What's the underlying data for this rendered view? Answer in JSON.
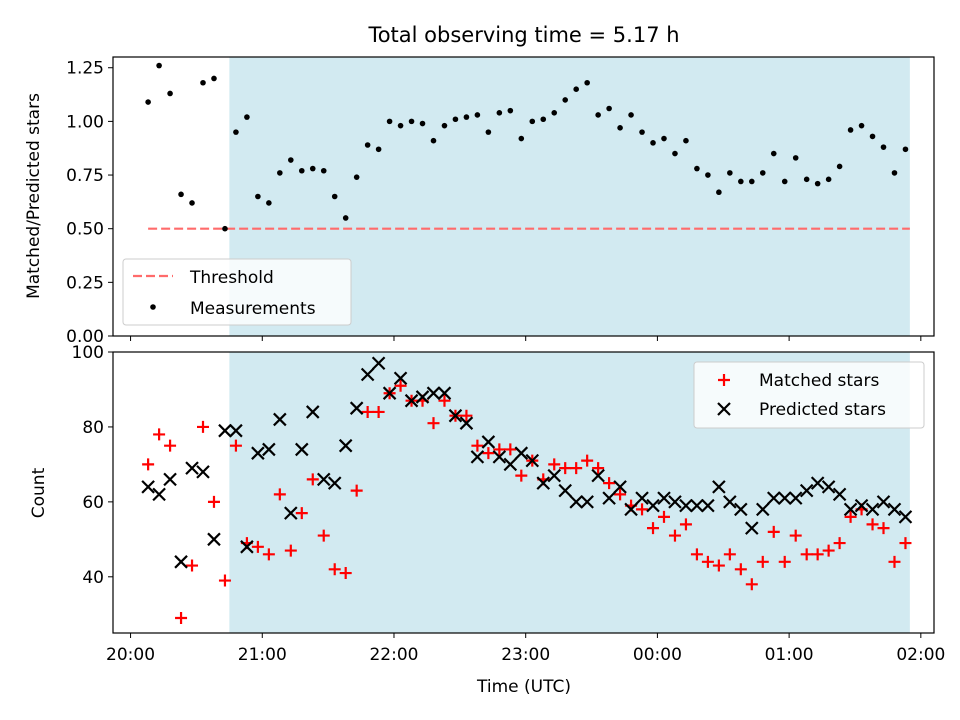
{
  "chart_data": [
    {
      "type": "scatter",
      "title": "Total observing time = 5.17 h",
      "ylabel": "Matched/Predicted stars",
      "xlabel": "",
      "ylim": [
        0,
        1.3
      ],
      "yticks": [
        "0.00",
        "0.25",
        "0.50",
        "0.75",
        "1.00",
        "1.25"
      ],
      "ytick_values": [
        0,
        0.25,
        0.5,
        0.75,
        1.0,
        1.25
      ],
      "legend_placement": "lower-left",
      "shaded_span": [
        "20:45",
        "01:55"
      ],
      "colors": {
        "shade": "#add8e6",
        "threshold": "#ff6b6b",
        "measurements": "#000000"
      },
      "threshold": {
        "name": "Threshold",
        "value": 0.5,
        "x_range": [
          "20:08",
          "01:55"
        ]
      },
      "series": [
        {
          "name": "Measurements",
          "x": [
            "20:08",
            "20:13",
            "20:18",
            "20:23",
            "20:28",
            "20:33",
            "20:38",
            "20:43",
            "20:48",
            "20:53",
            "20:58",
            "21:03",
            "21:08",
            "21:13",
            "21:18",
            "21:23",
            "21:28",
            "21:33",
            "21:38",
            "21:43",
            "21:48",
            "21:53",
            "21:58",
            "22:03",
            "22:08",
            "22:13",
            "22:18",
            "22:23",
            "22:28",
            "22:33",
            "22:38",
            "22:43",
            "22:48",
            "22:53",
            "22:58",
            "23:03",
            "23:08",
            "23:13",
            "23:18",
            "23:23",
            "23:28",
            "23:33",
            "23:38",
            "23:43",
            "23:48",
            "23:53",
            "23:58",
            "00:03",
            "00:08",
            "00:13",
            "00:18",
            "00:23",
            "00:28",
            "00:33",
            "00:38",
            "00:43",
            "00:48",
            "00:53",
            "00:58",
            "01:03",
            "01:08",
            "01:13",
            "01:18",
            "01:23",
            "01:28",
            "01:33",
            "01:38",
            "01:43",
            "01:48",
            "01:53"
          ],
          "y": [
            1.09,
            1.26,
            1.13,
            0.66,
            0.62,
            1.18,
            1.2,
            0.5,
            0.95,
            1.02,
            0.65,
            0.62,
            0.76,
            0.82,
            0.77,
            0.78,
            0.77,
            0.65,
            0.55,
            0.74,
            0.89,
            0.87,
            1.0,
            0.98,
            1.0,
            0.99,
            0.91,
            0.98,
            1.01,
            1.02,
            1.03,
            0.95,
            1.04,
            1.05,
            0.92,
            1.0,
            1.01,
            1.04,
            1.1,
            1.15,
            1.18,
            1.03,
            1.06,
            0.97,
            1.03,
            0.95,
            0.9,
            0.92,
            0.85,
            0.91,
            0.78,
            0.75,
            0.67,
            0.76,
            0.72,
            0.72,
            0.76,
            0.85,
            0.72,
            0.83,
            0.73,
            0.71,
            0.73,
            0.79,
            0.96,
            0.98,
            0.93,
            0.88,
            0.76,
            0.87
          ]
        }
      ]
    },
    {
      "type": "scatter",
      "title": "",
      "ylabel": "Count",
      "xlabel": "Time (UTC)",
      "ylim": [
        25,
        100
      ],
      "yticks": [
        "40",
        "60",
        "80",
        "100"
      ],
      "ytick_values": [
        40,
        60,
        80,
        100
      ],
      "xlim": [
        "19:52",
        "02:06"
      ],
      "xticks": [
        "20:00",
        "21:00",
        "22:00",
        "23:00",
        "00:00",
        "01:00",
        "02:00"
      ],
      "legend_placement": "upper-right",
      "shaded_span": [
        "20:45",
        "01:55"
      ],
      "colors": {
        "shade": "#add8e6",
        "matched": "#ff0000",
        "predicted": "#000000"
      },
      "series": [
        {
          "name": "Matched stars",
          "marker": "plus",
          "x": [
            "20:08",
            "20:13",
            "20:18",
            "20:23",
            "20:28",
            "20:33",
            "20:38",
            "20:43",
            "20:48",
            "20:53",
            "20:58",
            "21:03",
            "21:08",
            "21:13",
            "21:18",
            "21:23",
            "21:28",
            "21:33",
            "21:38",
            "21:43",
            "21:48",
            "21:53",
            "21:58",
            "22:03",
            "22:08",
            "22:13",
            "22:18",
            "22:23",
            "22:28",
            "22:33",
            "22:38",
            "22:43",
            "22:48",
            "22:53",
            "22:58",
            "23:03",
            "23:08",
            "23:13",
            "23:18",
            "23:23",
            "23:28",
            "23:33",
            "23:38",
            "23:43",
            "23:48",
            "23:53",
            "23:58",
            "00:03",
            "00:08",
            "00:13",
            "00:18",
            "00:23",
            "00:28",
            "00:33",
            "00:38",
            "00:43",
            "00:48",
            "00:53",
            "00:58",
            "01:03",
            "01:08",
            "01:13",
            "01:18",
            "01:23",
            "01:28",
            "01:33",
            "01:38",
            "01:43",
            "01:48",
            "01:53"
          ],
          "y": [
            70,
            78,
            75,
            29,
            43,
            80,
            60,
            39,
            75,
            49,
            48,
            46,
            62,
            47,
            57,
            66,
            51,
            42,
            41,
            63,
            84,
            84,
            89,
            91,
            87,
            87,
            81,
            87,
            83,
            83,
            75,
            73,
            74,
            74,
            67,
            71,
            66,
            70,
            69,
            69,
            71,
            69,
            65,
            62,
            59,
            58,
            53,
            56,
            51,
            54,
            46,
            44,
            43,
            46,
            42,
            38,
            44,
            52,
            44,
            51,
            46,
            46,
            47,
            49,
            56,
            58,
            54,
            53,
            44,
            49
          ]
        },
        {
          "name": "Predicted stars",
          "marker": "x",
          "x": [
            "20:08",
            "20:13",
            "20:18",
            "20:23",
            "20:28",
            "20:33",
            "20:38",
            "20:43",
            "20:48",
            "20:53",
            "20:58",
            "21:03",
            "21:08",
            "21:13",
            "21:18",
            "21:23",
            "21:28",
            "21:33",
            "21:38",
            "21:43",
            "21:48",
            "21:53",
            "21:58",
            "22:03",
            "22:08",
            "22:13",
            "22:18",
            "22:23",
            "22:28",
            "22:33",
            "22:38",
            "22:43",
            "22:48",
            "22:53",
            "22:58",
            "23:03",
            "23:08",
            "23:13",
            "23:18",
            "23:23",
            "23:28",
            "23:33",
            "23:38",
            "23:43",
            "23:48",
            "23:53",
            "23:58",
            "00:03",
            "00:08",
            "00:13",
            "00:18",
            "00:23",
            "00:28",
            "00:33",
            "00:38",
            "00:43",
            "00:48",
            "00:53",
            "00:58",
            "01:03",
            "01:08",
            "01:13",
            "01:18",
            "01:23",
            "01:28",
            "01:33",
            "01:38",
            "01:43",
            "01:48",
            "01:53"
          ],
          "y": [
            64,
            62,
            66,
            44,
            69,
            68,
            50,
            79,
            79,
            48,
            73,
            74,
            82,
            57,
            74,
            84,
            66,
            65,
            75,
            85,
            94,
            97,
            89,
            93,
            87,
            88,
            89,
            89,
            83,
            81,
            72,
            76,
            72,
            70,
            73,
            71,
            65,
            67,
            63,
            60,
            60,
            67,
            61,
            64,
            58,
            61,
            59,
            61,
            60,
            59,
            59,
            59,
            64,
            60,
            58,
            53,
            58,
            61,
            61,
            61,
            63,
            65,
            64,
            62,
            58,
            59,
            58,
            60,
            58,
            56
          ]
        }
      ]
    }
  ]
}
